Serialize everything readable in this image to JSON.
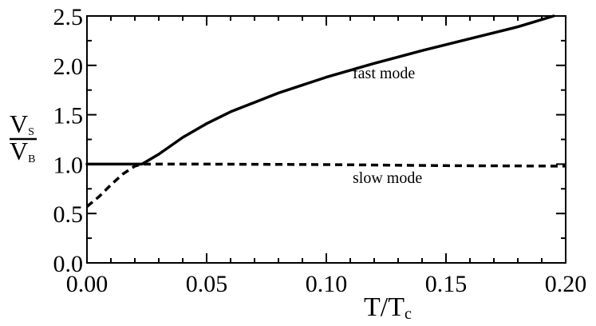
{
  "chart_data": {
    "type": "line",
    "xlabel_main": "T/T",
    "xlabel_sub": "c",
    "ylabel_num_main": "V",
    "ylabel_num_sub": "S",
    "ylabel_den_main": "V",
    "ylabel_den_sub": "B",
    "xlim": [
      0.0,
      0.2
    ],
    "ylim": [
      0.0,
      2.5
    ],
    "grid": false,
    "x_ticks": [
      0.0,
      0.05,
      0.1,
      0.15,
      0.2
    ],
    "x_tick_labels": [
      "0.00",
      "0.05",
      "0.10",
      "0.15",
      "0.20"
    ],
    "y_ticks": [
      0.0,
      0.5,
      1.0,
      1.5,
      2.0,
      2.5
    ],
    "y_tick_labels": [
      "0.0",
      "0.5",
      "1.0",
      "1.5",
      "2.0",
      "2.5"
    ],
    "series": [
      {
        "label": "fast mode",
        "style": "solid",
        "color": "#000000",
        "x": [
          0.0,
          0.021,
          0.023,
          0.03,
          0.04,
          0.05,
          0.06,
          0.08,
          0.1,
          0.12,
          0.14,
          0.16,
          0.18,
          0.195
        ],
        "y": [
          1.0,
          1.0,
          1.0,
          1.1,
          1.27,
          1.41,
          1.53,
          1.72,
          1.88,
          2.02,
          2.15,
          2.27,
          2.39,
          2.5
        ]
      },
      {
        "label": "slow mode",
        "style": "dashed",
        "color": "#000000",
        "x": [
          0.0,
          0.005,
          0.01,
          0.015,
          0.02,
          0.023,
          0.05,
          0.1,
          0.15,
          0.2
        ],
        "y": [
          0.57,
          0.67,
          0.79,
          0.9,
          0.98,
          1.0,
          1.0,
          0.995,
          0.985,
          0.98
        ]
      }
    ],
    "annotations": [
      {
        "text": "fast mode",
        "x": 0.111,
        "y": 1.87
      },
      {
        "text": "slow mode",
        "x": 0.111,
        "y": 0.81
      }
    ]
  }
}
